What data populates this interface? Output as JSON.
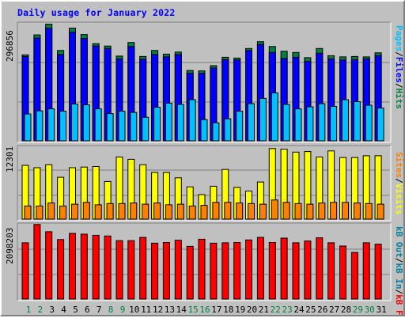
{
  "title": "Daily usage for January 2022",
  "colors": {
    "background": "#c0c0c0",
    "title": "#0000ff",
    "hits": "#008040",
    "files": "#0000ff",
    "pages": "#00c0ff",
    "visits": "#ffff00",
    "sites": "#ff8000",
    "kb_in": "#ff0000",
    "kb_out": "#0080a0",
    "weekend_day": "#008040",
    "weekday": "#000000"
  },
  "panels": {
    "top": {
      "ymax_label": "296856",
      "legend": [
        "Pages",
        "Files",
        "Hits"
      ]
    },
    "middle": {
      "ymax_label": "12301",
      "legend": [
        "Visits",
        "Sites"
      ]
    },
    "bottom": {
      "ymax_label": "2098203",
      "legend": [
        "kB Out",
        "kB In",
        "kB F"
      ]
    }
  },
  "chart_data": {
    "type": "bar",
    "categories": [
      "1",
      "2",
      "3",
      "4",
      "5",
      "6",
      "7",
      "8",
      "9",
      "10",
      "11",
      "12",
      "13",
      "14",
      "15",
      "16",
      "17",
      "18",
      "19",
      "20",
      "21",
      "22",
      "23",
      "24",
      "25",
      "26",
      "27",
      "28",
      "29",
      "30",
      "31"
    ],
    "weekend_days": [
      1,
      2,
      8,
      9,
      15,
      16,
      22,
      23,
      29,
      30
    ],
    "ylim": [
      0,
      296856
    ],
    "series": [
      {
        "name": "Hits",
        "panel": "top",
        "values": [
          215000,
          265000,
          292000,
          226000,
          282000,
          266000,
          243000,
          237000,
          212000,
          246000,
          211000,
          226000,
          217000,
          222000,
          176000,
          175000,
          188000,
          209000,
          207000,
          231000,
          248000,
          236000,
          224000,
          221000,
          208000,
          231000,
          213000,
          210000,
          211000,
          210000,
          220000
        ]
      },
      {
        "name": "Files",
        "panel": "top",
        "values": [
          211000,
          257000,
          282000,
          216000,
          272000,
          256000,
          237000,
          231000,
          205000,
          236000,
          204000,
          216000,
          210000,
          216000,
          169000,
          169000,
          182000,
          203000,
          202000,
          226000,
          241000,
          221000,
          206000,
          209000,
          199000,
          219000,
          205000,
          202000,
          203000,
          205000,
          213000
        ]
      },
      {
        "name": "Pages",
        "panel": "top",
        "values": [
          67000,
          75000,
          80000,
          74000,
          92000,
          90000,
          80000,
          68000,
          74000,
          71000,
          59000,
          84000,
          94000,
          91000,
          103000,
          53000,
          45000,
          55000,
          74000,
          93000,
          106000,
          120000,
          91000,
          80000,
          85000,
          93000,
          86000,
          103000,
          98000,
          89000,
          82000
        ]
      },
      {
        "name": "Visits",
        "panel": "middle",
        "ylim": [
          0,
          12301
        ],
        "values": [
          9000,
          8600,
          9100,
          7000,
          8600,
          8700,
          8800,
          6300,
          10400,
          10000,
          9100,
          7800,
          7800,
          6900,
          5400,
          4100,
          5500,
          8300,
          5300,
          4700,
          6200,
          11800,
          11700,
          11200,
          11300,
          10400,
          11400,
          10300,
          10300,
          10600,
          10600
        ]
      },
      {
        "name": "Sites",
        "panel": "middle",
        "ylim": [
          0,
          12301
        ],
        "values": [
          2200,
          2200,
          2700,
          2200,
          2500,
          2800,
          2400,
          2600,
          2600,
          2700,
          2500,
          2700,
          2400,
          2500,
          2200,
          2300,
          2800,
          2800,
          2700,
          2600,
          2500,
          3200,
          2800,
          2600,
          2500,
          2700,
          2800,
          2800,
          2700,
          2600,
          2500
        ]
      },
      {
        "name": "kB In",
        "panel": "bottom",
        "ylim": [
          0,
          2098203
        ],
        "values": [
          1570000,
          2080000,
          1880000,
          1660000,
          1830000,
          1810000,
          1780000,
          1760000,
          1630000,
          1630000,
          1720000,
          1560000,
          1580000,
          1640000,
          1470000,
          1670000,
          1560000,
          1570000,
          1580000,
          1650000,
          1720000,
          1580000,
          1700000,
          1570000,
          1620000,
          1710000,
          1570000,
          1480000,
          1300000,
          1570000,
          1530000
        ]
      }
    ]
  }
}
